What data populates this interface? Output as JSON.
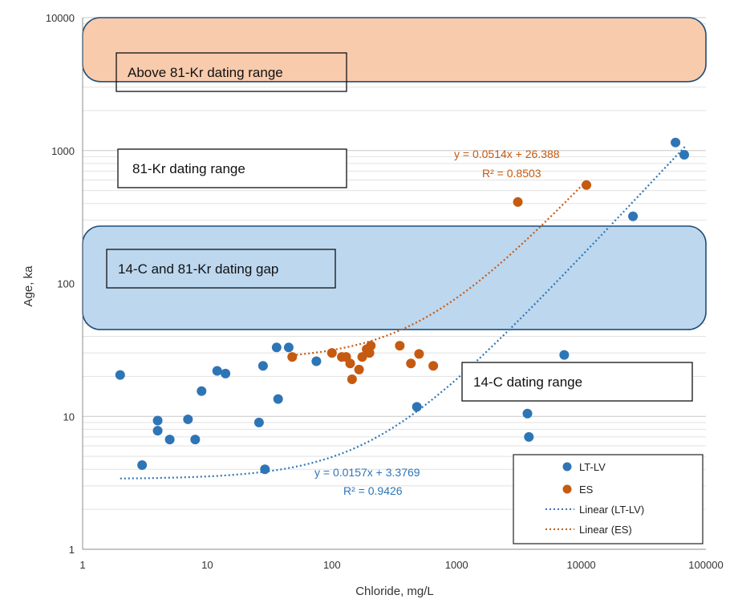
{
  "chart_data": {
    "type": "scatter",
    "x_scale": "log",
    "y_scale": "log",
    "xlim": [
      1,
      100000
    ],
    "ylim": [
      1,
      10000
    ],
    "xlabel": "Chloride, mg/L",
    "ylabel": "Age, ka",
    "x_ticks": [
      "1",
      "10",
      "100",
      "1000",
      "10000",
      "100000"
    ],
    "y_ticks": [
      "1",
      "10",
      "100",
      "1000",
      "10000"
    ],
    "grid": "horizontal minor and major gridlines",
    "legend_position": "bottom-right",
    "colors": {
      "lt_lv": "#2e75b6",
      "es": "#c55a11",
      "range_orange": "#f8cbad",
      "range_blue": "#bdd7ee",
      "range_border": "#1f4e79"
    },
    "series": [
      {
        "name": "LT-LV",
        "color": "#2e75b6",
        "points": [
          [
            2,
            20.5
          ],
          [
            3,
            4.3
          ],
          [
            4,
            9.3
          ],
          [
            4,
            7.8
          ],
          [
            5,
            6.7
          ],
          [
            7,
            9.5
          ],
          [
            8,
            6.7
          ],
          [
            9,
            15.5
          ],
          [
            12,
            22
          ],
          [
            14,
            21
          ],
          [
            26,
            9
          ],
          [
            28,
            24
          ],
          [
            29,
            4
          ],
          [
            36,
            33
          ],
          [
            37,
            13.5
          ],
          [
            45,
            33
          ],
          [
            75,
            26
          ],
          [
            480,
            11.8
          ],
          [
            3700,
            10.5
          ],
          [
            3800,
            7
          ],
          [
            7300,
            29
          ],
          [
            26000,
            320
          ],
          [
            57000,
            1150
          ],
          [
            67000,
            930
          ]
        ]
      },
      {
        "name": "ES",
        "color": "#c55a11",
        "points": [
          [
            48,
            28
          ],
          [
            100,
            30
          ],
          [
            120,
            28
          ],
          [
            130,
            28
          ],
          [
            140,
            25
          ],
          [
            145,
            19
          ],
          [
            165,
            22.5
          ],
          [
            175,
            28
          ],
          [
            190,
            32
          ],
          [
            200,
            30
          ],
          [
            205,
            34
          ],
          [
            350,
            34
          ],
          [
            430,
            25
          ],
          [
            500,
            29.5
          ],
          [
            650,
            24
          ],
          [
            3100,
            410
          ],
          [
            11000,
            550
          ]
        ]
      }
    ],
    "trendlines": [
      {
        "name": "Linear (LT-LV)",
        "color": "#2e75b6",
        "slope": 0.0157,
        "intercept": 3.3769,
        "x_range": [
          2,
          68000
        ],
        "equation": "y = 0.0157x + 3.3769",
        "r2": "R² = 0.9426"
      },
      {
        "name": "Linear (ES)",
        "color": "#c55a11",
        "slope": 0.0514,
        "intercept": 26.388,
        "x_range": [
          48,
          11000
        ],
        "equation": "y = 0.0514x + 26.388",
        "r2": "R² = 0.8503"
      }
    ],
    "bands": [
      {
        "name": "above-kr",
        "color": "#f8cbad",
        "y_range": [
          3300,
          10000
        ]
      },
      {
        "name": "gap",
        "color": "#bdd7ee",
        "y_range": [
          45,
          270
        ]
      }
    ],
    "annotations": {
      "above_kr": "Above 81-Kr dating range",
      "kr_range": "81-Kr dating range",
      "gap": "14-C and 81-Kr dating gap",
      "c14_range": "14-C dating range"
    },
    "legend": [
      "LT-LV",
      "ES",
      "Linear (LT-LV)",
      "Linear (ES)"
    ]
  }
}
